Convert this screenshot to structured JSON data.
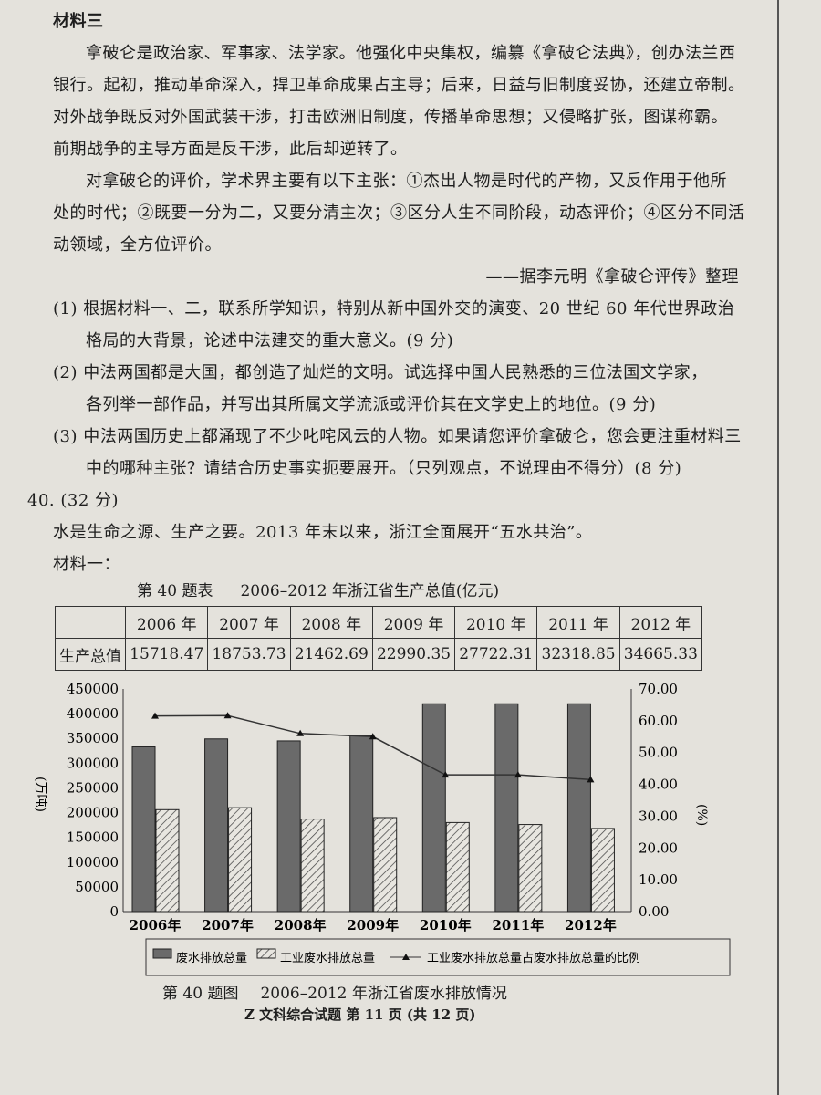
{
  "material3": {
    "heading": "材料三",
    "lines": [
      "拿破仑是政治家、军事家、法学家。他强化中央集权，编纂《拿破仑法典》，创办法兰西",
      "银行。起初，推动革命深入，捍卫革命成果占主导；后来，日益与旧制度妥协，还建立帝制。",
      "对外战争既反对外国武装干涉，打击欧洲旧制度，传播革命思想；又侵略扩张，图谋称霸。",
      "前期战争的主导方面是反干涉，此后却逆转了。",
      "对拿破仑的评价，学术界主要有以下主张：①杰出人物是时代的产物，又反作用于他所",
      "处的时代；②既要一分为二，又要分清主次；③区分人生不同阶段，动态评价；④区分不同活",
      "动领域，全方位评价。"
    ],
    "source": "——据李元明《拿破仑评传》整理"
  },
  "questions": [
    {
      "lines": [
        "(1) 根据材料一、二，联系所学知识，特别从新中国外交的演变、20 世纪 60 年代世界政治",
        "格局的大背景，论述中法建交的重大意义。(9 分)"
      ]
    },
    {
      "lines": [
        "(2) 中法两国都是大国，都创造了灿烂的文明。试选择中国人民熟悉的三位法国文学家，",
        "各列举一部作品，并写出其所属文学流派或评价其在文学史上的地位。(9 分)"
      ]
    },
    {
      "lines": [
        "(3) 中法两国历史上都涌现了不少叱咤风云的人物。如果请您评价拿破仑，您会更注重材料三",
        "中的哪种主张？请结合历史事实扼要展开。（只列观点，不说理由不得分）(8 分)"
      ]
    }
  ],
  "q40": {
    "number": "40. (32 分)",
    "intro": "水是生命之源、生产之要。2013 年末以来，浙江全面展开“五水共治”。",
    "material1": "材料一："
  },
  "table": {
    "label": "第 40 题表",
    "title": "2006–2012 年浙江省生产总值(亿元)",
    "row_header": "生产总值",
    "years": [
      "2006 年",
      "2007 年",
      "2008 年",
      "2009 年",
      "2010 年",
      "2011 年",
      "2012 年"
    ],
    "values": [
      "15718.47",
      "18753.73",
      "21462.69",
      "22990.35",
      "27722.31",
      "32318.85",
      "34665.33"
    ]
  },
  "chart_data": {
    "type": "bar",
    "label": "第 40 题图",
    "title": "2006–2012 年浙江省废水排放情况",
    "categories": [
      "2006年",
      "2007年",
      "2008年",
      "2009年",
      "2010年",
      "2011年",
      "2012年"
    ],
    "ylabel": "(万吨)",
    "y2label": "(%)",
    "ylim": [
      0,
      450000
    ],
    "y2lim": [
      0,
      70
    ],
    "yticks": [
      "0",
      "50000",
      "100000",
      "150000",
      "200000",
      "250000",
      "300000",
      "350000",
      "400000",
      "450000"
    ],
    "y2ticks": [
      "0.00",
      "10.00",
      "20.00",
      "30.00",
      "40.00",
      "50.00",
      "60.00",
      "70.00"
    ],
    "series": [
      {
        "name": "废水排放总量",
        "type": "bar",
        "values": [
          333000,
          349000,
          345000,
          356000,
          420000,
          420000,
          420000
        ]
      },
      {
        "name": "工业废水排放总量",
        "type": "bar",
        "values": [
          206000,
          210000,
          187000,
          190000,
          180000,
          176000,
          168000
        ]
      },
      {
        "name": "工业废水排放总量占废水排放总量的比例",
        "type": "line",
        "axis": "right",
        "values": [
          61.5,
          61.6,
          56.0,
          55.0,
          43.0,
          43.0,
          41.5
        ]
      }
    ],
    "legend": "bottom"
  },
  "footer": "Z 文科综合试题 第 11 页 (共 12 页)",
  "colors": {
    "paper": "#e4e2dc",
    "bar_dark": "#6a6a6a"
  }
}
